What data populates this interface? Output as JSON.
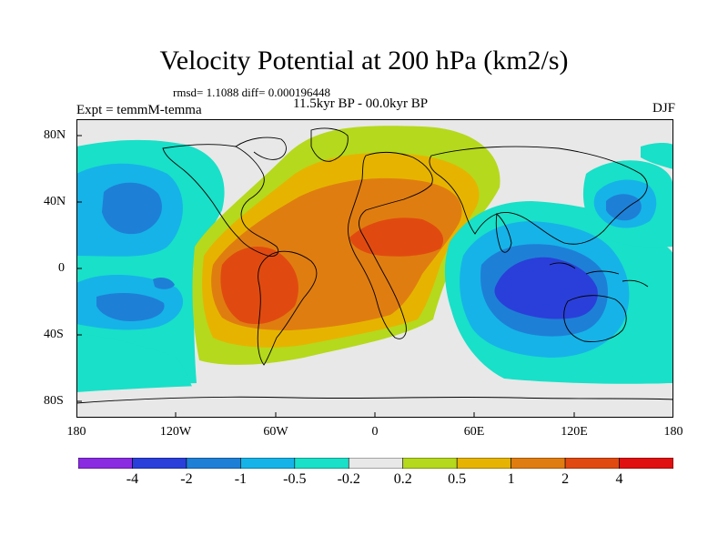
{
  "title": "Velocity Potential at 200 hPa (km2/s)",
  "stats": "rmsd= 1.1088  diff= 0.000196448",
  "experiment": "Expt = temmM-temma",
  "period": "11.5kyr BP - 00.0kyr BP",
  "season": "DJF",
  "lat_ticks": [
    "80N",
    "40N",
    "0",
    "40S",
    "80S"
  ],
  "lon_ticks": [
    "180",
    "120W",
    "60W",
    "0",
    "60E",
    "120E",
    "180"
  ],
  "colorbar": {
    "labels": [
      "-4",
      "-2",
      "-1",
      "-0.5",
      "-0.2",
      "0.2",
      "0.5",
      "1",
      "2",
      "4"
    ],
    "colors": [
      "#8a2be2",
      "#2a3fd9",
      "#1e7fd6",
      "#16b3e8",
      "#19e0c8",
      "#e8e8e8",
      "#b5d91c",
      "#e6b400",
      "#e07d10",
      "#e04a10",
      "#e01010"
    ]
  },
  "colors": {
    "neutral": "#e8e8e8",
    "coast": "#000000"
  }
}
